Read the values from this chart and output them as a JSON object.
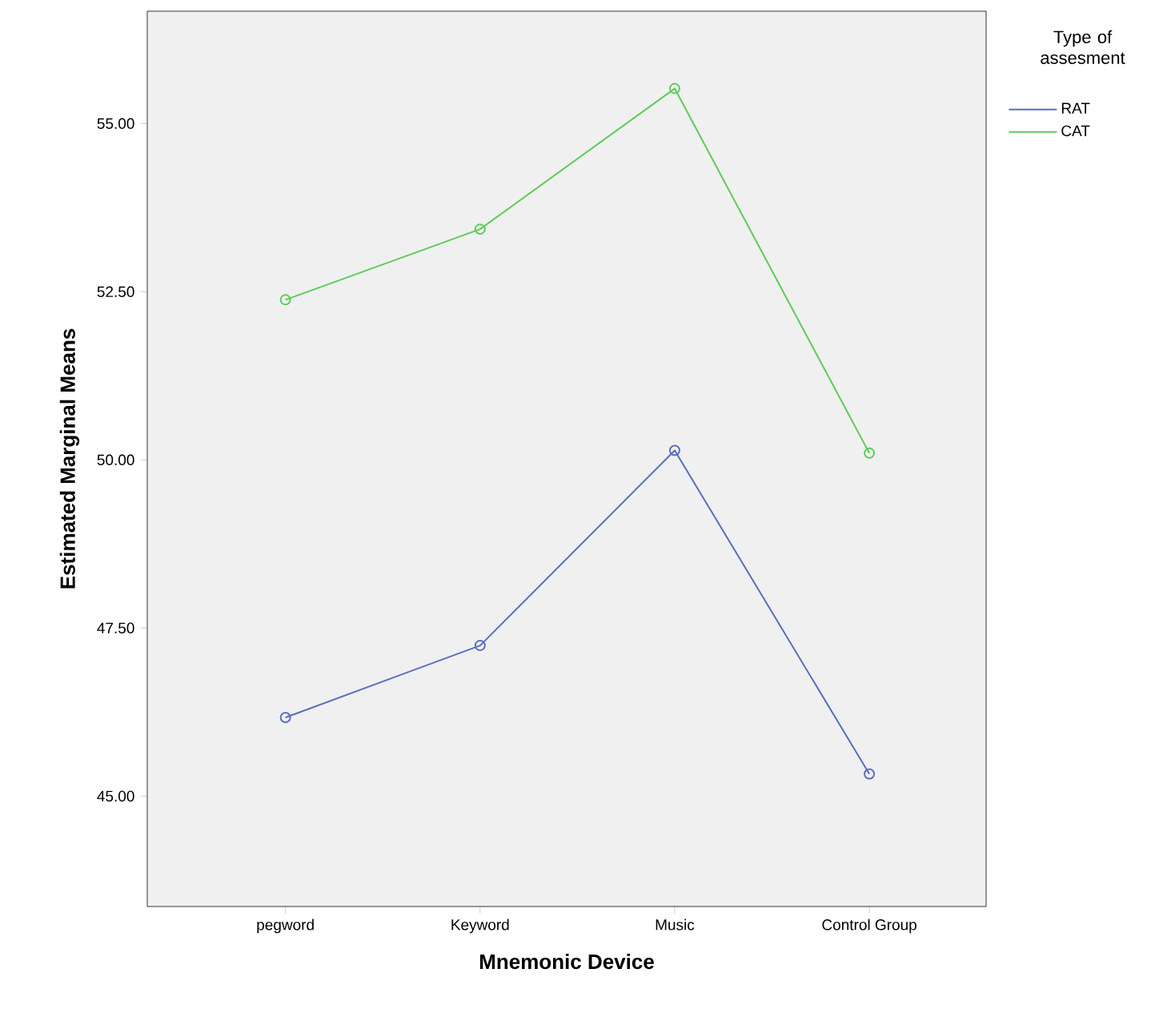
{
  "chart_data": {
    "type": "line",
    "xlabel": "Mnemonic Device",
    "ylabel": "Estimated Marginal Means",
    "legend_title": "Type of assesment",
    "categories": [
      "pegword",
      "Keyword",
      "Music",
      "Control Group"
    ],
    "series": [
      {
        "name": "RAT",
        "color": "#5a6ebe",
        "values": [
          46.17,
          47.24,
          50.14,
          45.33
        ]
      },
      {
        "name": "CAT",
        "color": "#5ccc58",
        "values": [
          52.38,
          53.43,
          55.52,
          50.1
        ]
      }
    ],
    "ylim": [
      43.36,
      56.67
    ],
    "yticks": [
      {
        "value": 45,
        "label": "45.00"
      },
      {
        "value": 47.5,
        "label": "47.50"
      },
      {
        "value": 50,
        "label": "50.00"
      },
      {
        "value": 52.5,
        "label": "52.50"
      },
      {
        "value": 55,
        "label": "55.00"
      }
    ],
    "grid": false,
    "legend": "top right",
    "marker": "circle",
    "line_style": "solid"
  }
}
